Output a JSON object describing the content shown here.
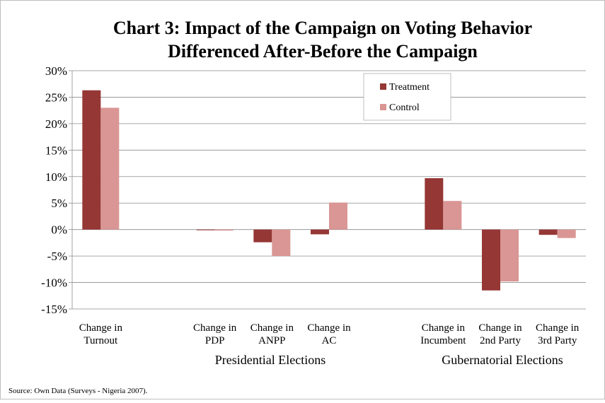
{
  "chart_data": {
    "type": "bar",
    "title_line1": "Chart 3: Impact of the Campaign on Voting Behavior",
    "title_line2": "Differenced After-Before the Campaign",
    "categories": [
      {
        "line1": "Change in",
        "line2": "Turnout"
      },
      {
        "line1": "",
        "line2": ""
      },
      {
        "line1": "Change in",
        "line2": "PDP"
      },
      {
        "line1": "Change in",
        "line2": "ANPP"
      },
      {
        "line1": "Change in",
        "line2": "AC"
      },
      {
        "line1": "",
        "line2": ""
      },
      {
        "line1": "Change in",
        "line2": "Incumbent"
      },
      {
        "line1": "Change in",
        "line2": "2nd Party"
      },
      {
        "line1": "Change in",
        "line2": "3rd Party"
      }
    ],
    "groups": [
      "Presidential Elections",
      "Gubernatorial Elections"
    ],
    "series": [
      {
        "name": "Treatment",
        "color": "#953735",
        "values": [
          26.3,
          null,
          -0.1,
          -2.4,
          -0.9,
          null,
          9.7,
          -11.5,
          -1.0
        ]
      },
      {
        "name": "Control",
        "color": "#d99694",
        "values": [
          23.0,
          null,
          -0.2,
          -5.0,
          5.1,
          null,
          5.4,
          -9.8,
          -1.6
        ]
      }
    ],
    "ylim": [
      -15,
      30
    ],
    "yticks": [
      "-15%",
      "-10%",
      "-5%",
      "0%",
      "5%",
      "10%",
      "15%",
      "20%",
      "25%",
      "30%"
    ],
    "ytick_values": [
      -15,
      -10,
      -5,
      0,
      5,
      10,
      15,
      20,
      25,
      30
    ],
    "grid": true,
    "legend_position": "top-right",
    "source": "Source: Own Data (Surveys - Nigeria 2007)."
  }
}
